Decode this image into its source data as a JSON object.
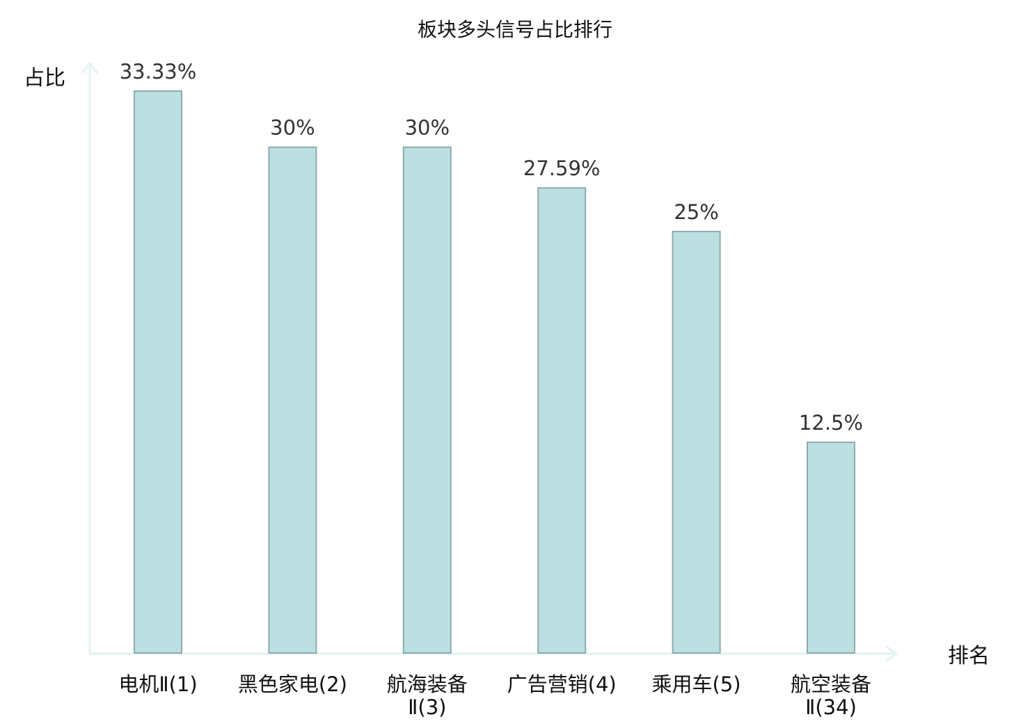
{
  "chart_data": {
    "type": "bar",
    "title": "板块多头信号占比排行",
    "xlabel": "排名",
    "ylabel": "占比",
    "ylim": [
      0,
      35
    ],
    "grid": false,
    "legend": "none",
    "categories": [
      {
        "lines": [
          "电机Ⅱ(1)"
        ],
        "highlight": false
      },
      {
        "lines": [
          "黑色家电(2)"
        ],
        "highlight": false
      },
      {
        "lines": [
          "航海装备",
          "Ⅱ(3)"
        ],
        "highlight": false
      },
      {
        "lines": [
          "广告营销(4)"
        ],
        "highlight": false
      },
      {
        "lines": [
          "乘用车(5)"
        ],
        "highlight": false
      },
      {
        "lines": [
          "航空装备",
          "Ⅱ(34)"
        ],
        "highlight": true
      }
    ],
    "values": [
      33.33,
      30,
      30,
      27.59,
      25,
      12.5
    ],
    "value_labels": [
      "33.33%",
      "30%",
      "30%",
      "27.59%",
      "25%",
      "12.5%"
    ]
  },
  "colors": {
    "bar_fill": "#bce0e2",
    "bar_stroke": "#8eaaad",
    "axis": "#e2f3f1",
    "value_text": "#333333",
    "text": "#111111",
    "highlight_text": "#e01010"
  }
}
